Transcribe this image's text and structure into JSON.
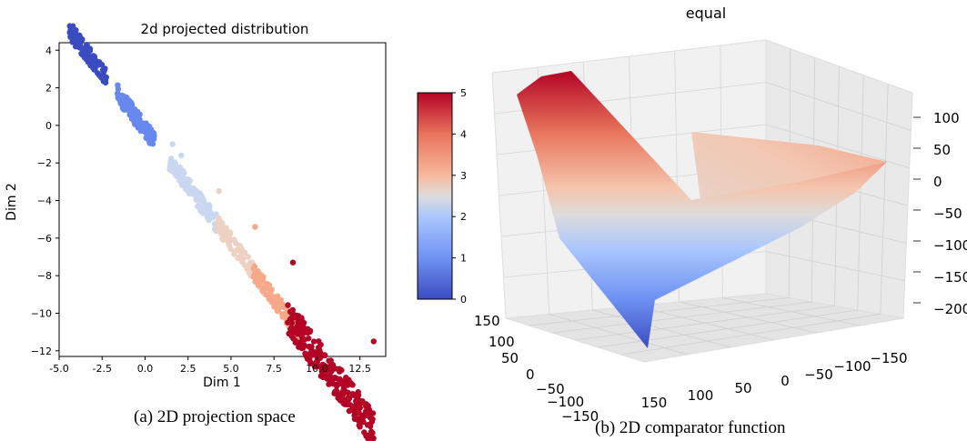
{
  "colors": {
    "cmap": [
      "#3b4cc0",
      "#6788ee",
      "#9abbff",
      "#c9d7f0",
      "#edd1c2",
      "#f7a889",
      "#e26952",
      "#b40426"
    ]
  },
  "chart_data": [
    {
      "type": "scatter",
      "title": "2d projected distribution",
      "xlabel": "Dim 1",
      "ylabel": "Dim 2",
      "xlim": [
        -5,
        14
      ],
      "ylim": [
        -12.3,
        4.4
      ],
      "xticks": [
        "-5.0",
        "-2.5",
        "0.0",
        "2.5",
        "5.0",
        "7.5",
        "10.0",
        "12.5"
      ],
      "xtick_values": [
        -5,
        -2.5,
        0,
        2.5,
        5,
        7.5,
        10,
        12.5
      ],
      "yticks": [
        "4",
        "2",
        "0",
        "−2",
        "−4",
        "−6",
        "−8",
        "−10",
        "−12"
      ],
      "ytick_values": [
        4,
        2,
        0,
        -2,
        -4,
        -6,
        -8,
        -10,
        -12
      ],
      "grid": false,
      "colorbar": {
        "min": 0,
        "max": 5,
        "ticks": [
          "0",
          "1",
          "2",
          "3",
          "4",
          "5"
        ],
        "colormap": "coolwarm"
      },
      "clusters": [
        {
          "label": 0,
          "x_range": [
            -4.4,
            -2.2
          ],
          "center": [
            -3.4,
            3.3
          ],
          "count": 120
        },
        {
          "label": 1,
          "x_range": [
            -1.6,
            0.6
          ],
          "center": [
            -0.6,
            1.0
          ],
          "count": 110
        },
        {
          "label": 2,
          "x_range": [
            1.4,
            4.2
          ],
          "center": [
            2.8,
            -2.2
          ],
          "count": 110
        },
        {
          "label": 3,
          "x_range": [
            4.2,
            7.0
          ],
          "center": [
            5.6,
            -4.6
          ],
          "count": 100
        },
        {
          "label": 4,
          "x_range": [
            6.3,
            9.2
          ],
          "center": [
            7.6,
            -6.5
          ],
          "count": 120
        },
        {
          "label": 5,
          "x_range": [
            8.3,
            13.3
          ],
          "center": [
            10.7,
            -9.1
          ],
          "count": 260
        }
      ],
      "caption": "(a) 2D projection space"
    },
    {
      "type": "surface",
      "title": "equal",
      "zlim": [
        -200,
        100
      ],
      "zticks": [
        "100",
        "50",
        "0",
        "−50",
        "−100",
        "−150",
        "−200"
      ],
      "xticks": [
        "150",
        "100",
        "50",
        "0",
        "−50",
        "−100",
        "−150"
      ],
      "yticks": [
        "150",
        "100",
        "50",
        "0",
        "−50",
        "−100",
        "−150"
      ],
      "colormap": "coolwarm",
      "caption": "(b) 2D comparator function"
    }
  ]
}
